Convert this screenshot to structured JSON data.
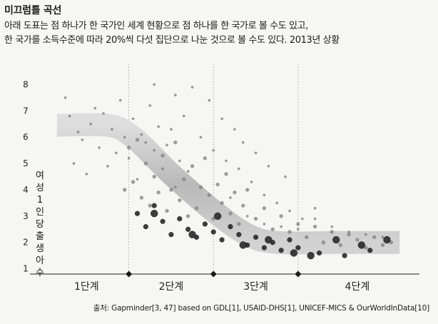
{
  "header": {
    "title": "미끄럼틀 곡선",
    "subtitle_line1": "아래 도표는 점 하나가 한 국가인 세계 현황으로 점 하나를 한 국가로 볼 수도 있고,",
    "subtitle_line2": "한 국가를 소득수준에 따라 20%씩 다섯 집단으로 나눈 것으로 볼 수도 있다. 2013년 상황"
  },
  "source": "출처: Gapminder[3, 47] based on GDL[1], USAID-DHS[1], UNICEF-MICS & OurWorldInData[10]",
  "chart_data": {
    "type": "scatter",
    "title": "미끄럼틀 곡선",
    "ylabel": "여성 1인당 출생아 수",
    "xlabel": "",
    "ylim": [
      0.8,
      8.5
    ],
    "y_ticks": [
      1,
      2,
      3,
      4,
      5,
      6,
      7,
      8
    ],
    "x_categories": [
      "1단계",
      "2단계",
      "3단계",
      "4단계"
    ],
    "category_boundaries": [
      1,
      2,
      3
    ],
    "grid": "vertical dotted lines at level boundaries",
    "trend_band": [
      {
        "x": 0.15,
        "y": 6.45
      },
      {
        "x": 0.75,
        "y": 6.45
      },
      {
        "x": 1.05,
        "y": 6.0
      },
      {
        "x": 1.5,
        "y": 4.6
      },
      {
        "x": 2.0,
        "y": 3.2
      },
      {
        "x": 2.4,
        "y": 2.3
      },
      {
        "x": 2.75,
        "y": 2.0
      },
      {
        "x": 3.5,
        "y": 2.0
      },
      {
        "x": 4.2,
        "y": 2.0
      }
    ],
    "points_note": "countries/income groups, approx. values",
    "points": [
      [
        0.25,
        7.5,
        1
      ],
      [
        0.3,
        6.8,
        1
      ],
      [
        0.35,
        5.0,
        1
      ],
      [
        0.4,
        6.2,
        1
      ],
      [
        0.45,
        5.9,
        1
      ],
      [
        0.5,
        4.6,
        1
      ],
      [
        0.55,
        6.5,
        1
      ],
      [
        0.6,
        7.1,
        1
      ],
      [
        0.65,
        5.6,
        1
      ],
      [
        0.7,
        6.9,
        1
      ],
      [
        0.75,
        4.9,
        1
      ],
      [
        0.8,
        6.3,
        1
      ],
      [
        0.85,
        5.4,
        1
      ],
      [
        0.9,
        7.4,
        1
      ],
      [
        0.95,
        6.0,
        1
      ],
      [
        1.0,
        5.2,
        1
      ],
      [
        1.05,
        6.7,
        1
      ],
      [
        1.1,
        4.4,
        1
      ],
      [
        1.15,
        6.1,
        1
      ],
      [
        1.2,
        5.8,
        1
      ],
      [
        1.25,
        7.2,
        1
      ],
      [
        1.3,
        5.5,
        1
      ],
      [
        1.35,
        6.4,
        1
      ],
      [
        1.4,
        4.8,
        1
      ],
      [
        1.45,
        5.7,
        1
      ],
      [
        1.5,
        6.3,
        1
      ],
      [
        1.55,
        4.1,
        1
      ],
      [
        1.6,
        5.1,
        1
      ],
      [
        1.65,
        6.8,
        1
      ],
      [
        1.7,
        4.7,
        1
      ],
      [
        0.95,
        4.0,
        2
      ],
      [
        1.0,
        5.6,
        2
      ],
      [
        1.05,
        4.3,
        2
      ],
      [
        1.1,
        5.9,
        2
      ],
      [
        1.15,
        3.7,
        2
      ],
      [
        1.2,
        5.0,
        2
      ],
      [
        1.25,
        3.4,
        2
      ],
      [
        1.3,
        4.5,
        2
      ],
      [
        1.35,
        3.9,
        2
      ],
      [
        1.4,
        5.3,
        2
      ],
      [
        1.45,
        3.2,
        2
      ],
      [
        1.5,
        4.0,
        2
      ],
      [
        1.55,
        5.8,
        2
      ],
      [
        1.6,
        3.6,
        2
      ],
      [
        1.65,
        4.4,
        2
      ],
      [
        1.7,
        3.0,
        2
      ],
      [
        1.75,
        4.9,
        2
      ],
      [
        1.8,
        3.3,
        2
      ],
      [
        1.85,
        4.1,
        2
      ],
      [
        1.9,
        5.2,
        2
      ],
      [
        1.95,
        3.8,
        2
      ],
      [
        2.0,
        2.9,
        2
      ],
      [
        2.05,
        4.2,
        2
      ],
      [
        2.1,
        3.5,
        2
      ],
      [
        2.15,
        4.6,
        2
      ],
      [
        2.2,
        3.1,
        2
      ],
      [
        2.25,
        3.9,
        2
      ],
      [
        2.3,
        2.7,
        2
      ],
      [
        2.35,
        3.4,
        2
      ],
      [
        2.4,
        4.0,
        2
      ],
      [
        1.1,
        3.1,
        3
      ],
      [
        1.2,
        2.6,
        3
      ],
      [
        1.3,
        3.4,
        3
      ],
      [
        1.4,
        2.8,
        3
      ],
      [
        1.5,
        2.3,
        3
      ],
      [
        1.6,
        2.9,
        3
      ],
      [
        1.7,
        2.5,
        3
      ],
      [
        1.8,
        2.2,
        3
      ],
      [
        1.9,
        2.7,
        3
      ],
      [
        2.0,
        2.4,
        3
      ],
      [
        2.1,
        2.1,
        3
      ],
      [
        2.2,
        2.6,
        3
      ],
      [
        2.3,
        2.3,
        3
      ],
      [
        2.4,
        1.9,
        3
      ],
      [
        2.5,
        2.2,
        3
      ],
      [
        2.6,
        1.8,
        3
      ],
      [
        2.7,
        2.0,
        3
      ],
      [
        2.8,
        1.7,
        3
      ],
      [
        2.9,
        2.1,
        3
      ],
      [
        3.0,
        1.8,
        3
      ],
      [
        2.5,
        2.9,
        2
      ],
      [
        2.6,
        3.3,
        2
      ],
      [
        2.7,
        2.5,
        2
      ],
      [
        2.8,
        3.0,
        2
      ],
      [
        2.9,
        2.4,
        2
      ],
      [
        3.0,
        2.7,
        2
      ],
      [
        3.1,
        2.2,
        2
      ],
      [
        3.2,
        2.6,
        2
      ],
      [
        3.3,
        2.0,
        2
      ],
      [
        3.4,
        2.4,
        2
      ],
      [
        3.5,
        1.9,
        2
      ],
      [
        3.6,
        2.3,
        2
      ],
      [
        3.7,
        2.1,
        2
      ],
      [
        3.8,
        1.8,
        2
      ],
      [
        3.9,
        2.2,
        2
      ],
      [
        4.0,
        1.9,
        2
      ],
      [
        4.1,
        2.0,
        2
      ],
      [
        3.25,
        1.6,
        3
      ],
      [
        3.55,
        1.5,
        3
      ],
      [
        3.85,
        1.7,
        3
      ],
      [
        2.2,
        3.7,
        1
      ],
      [
        2.4,
        3.0,
        1
      ],
      [
        2.6,
        2.7,
        1
      ],
      [
        2.8,
        2.6,
        1
      ],
      [
        3.0,
        2.5,
        1
      ],
      [
        3.2,
        2.9,
        1
      ],
      [
        3.4,
        2.6,
        1
      ],
      [
        3.6,
        2.4,
        1
      ],
      [
        3.8,
        2.3,
        1
      ],
      [
        4.0,
        2.2,
        1
      ],
      [
        1.85,
        6.0,
        1
      ],
      [
        2.0,
        5.5,
        1
      ],
      [
        2.15,
        5.1,
        1
      ],
      [
        2.3,
        4.8,
        1
      ],
      [
        2.45,
        4.3,
        1
      ],
      [
        2.6,
        3.8,
        1
      ],
      [
        2.75,
        3.5,
        1
      ],
      [
        2.9,
        3.2,
        1
      ],
      [
        3.05,
        2.9,
        1
      ],
      [
        3.2,
        3.3,
        1
      ],
      [
        1.3,
        8.0,
        1
      ],
      [
        1.55,
        7.6,
        1
      ],
      [
        1.75,
        7.9,
        1
      ],
      [
        1.95,
        7.4,
        1
      ],
      [
        2.1,
        6.7,
        1
      ],
      [
        2.25,
        6.3,
        1
      ],
      [
        2.35,
        5.8,
        1
      ],
      [
        2.5,
        5.4,
        1
      ],
      [
        2.65,
        4.9,
        1
      ],
      [
        2.85,
        4.5,
        1
      ],
      [
        1.3,
        3.1,
        4
      ],
      [
        1.75,
        2.3,
        4
      ],
      [
        2.05,
        3.0,
        4
      ],
      [
        2.35,
        1.9,
        4
      ],
      [
        2.65,
        2.1,
        4
      ],
      [
        3.15,
        1.5,
        4
      ],
      [
        3.45,
        2.1,
        4
      ],
      [
        3.75,
        1.9,
        4
      ],
      [
        2.95,
        1.6,
        4
      ],
      [
        4.05,
        2.1,
        4
      ]
    ]
  },
  "colors": {
    "background": "#f6f6f4",
    "band": "#b9b9b9",
    "axis": "#222222",
    "point_light": "#8a8a8a",
    "point_dark": "#2a2a2a"
  }
}
